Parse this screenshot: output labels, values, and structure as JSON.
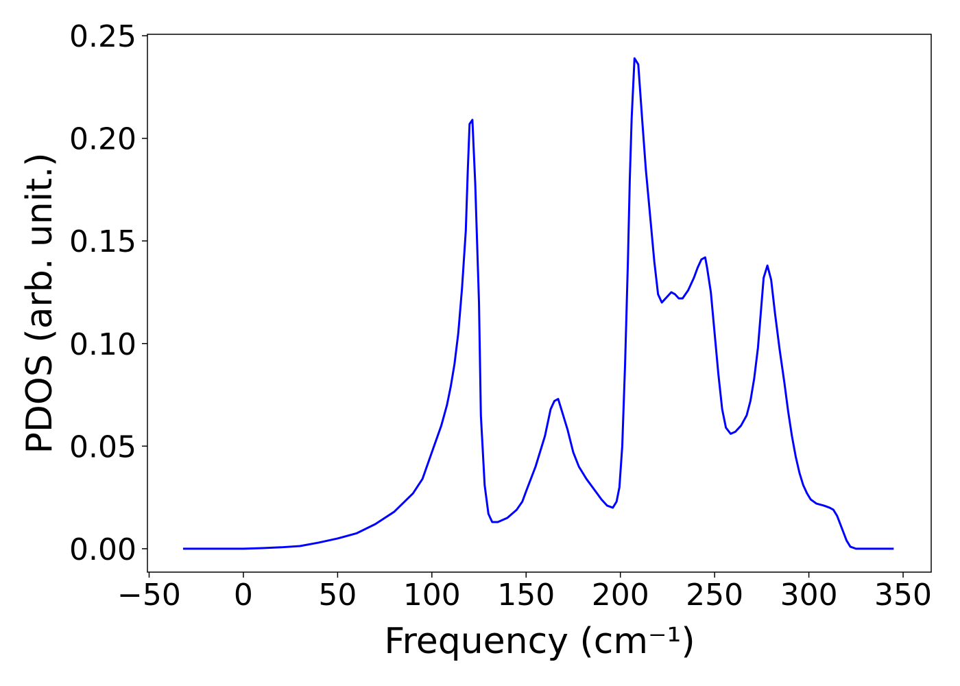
{
  "chart_data": {
    "type": "line",
    "x_label": "Frequency (cm⁻¹)",
    "y_label": "PDOS (arb. unit.)",
    "x": [
      -32,
      0,
      10,
      20,
      30,
      40,
      50,
      60,
      70,
      80,
      90,
      95,
      100,
      105,
      108,
      110,
      112,
      114,
      116,
      118,
      119,
      120,
      121.5,
      123,
      125,
      126,
      128,
      130,
      132,
      135,
      140,
      145,
      148,
      150,
      155,
      160,
      163,
      165,
      167,
      169,
      172,
      175,
      178,
      182,
      186,
      190,
      193,
      196,
      198,
      199.5,
      201,
      202.5,
      204,
      205,
      206,
      207.5,
      209.5,
      211.5,
      213.5,
      216,
      218,
      220,
      222,
      225,
      227,
      229,
      231,
      233,
      236,
      239,
      241,
      243,
      245,
      246,
      248,
      250,
      252,
      254,
      256,
      258.5,
      261,
      264,
      267,
      269,
      271,
      273,
      274.5,
      276,
      278,
      280,
      282,
      284.5,
      287,
      289,
      291,
      293,
      295,
      297,
      299,
      301,
      304,
      308,
      311,
      313,
      315,
      317.5,
      320,
      322,
      325,
      335,
      345
    ],
    "values": [
      0,
      0,
      0.0003,
      0.0007,
      0.0013,
      0.003,
      0.005,
      0.0075,
      0.012,
      0.018,
      0.027,
      0.034,
      0.047,
      0.06,
      0.07,
      0.079,
      0.09,
      0.105,
      0.127,
      0.155,
      0.183,
      0.207,
      0.209,
      0.178,
      0.12,
      0.065,
      0.031,
      0.017,
      0.013,
      0.013,
      0.015,
      0.019,
      0.023,
      0.028,
      0.04,
      0.055,
      0.068,
      0.072,
      0.073,
      0.067,
      0.058,
      0.047,
      0.04,
      0.034,
      0.029,
      0.024,
      0.021,
      0.02,
      0.023,
      0.03,
      0.05,
      0.09,
      0.14,
      0.18,
      0.21,
      0.239,
      0.236,
      0.21,
      0.185,
      0.16,
      0.14,
      0.124,
      0.12,
      0.123,
      0.125,
      0.124,
      0.122,
      0.122,
      0.126,
      0.132,
      0.137,
      0.141,
      0.142,
      0.137,
      0.125,
      0.105,
      0.085,
      0.068,
      0.059,
      0.056,
      0.057,
      0.06,
      0.065,
      0.072,
      0.083,
      0.098,
      0.115,
      0.132,
      0.138,
      0.131,
      0.115,
      0.097,
      0.081,
      0.067,
      0.055,
      0.045,
      0.037,
      0.031,
      0.027,
      0.024,
      0.022,
      0.021,
      0.02,
      0.019,
      0.016,
      0.01,
      0.004,
      0.001,
      0,
      0,
      0
    ],
    "color": "#0000ff",
    "xlim": [
      -50.9,
      364.9
    ],
    "ylim": [
      -0.0114,
      0.2507
    ],
    "xticks": [
      {
        "value": -50,
        "label": "−50"
      },
      0,
      50,
      100,
      150,
      200,
      250,
      300,
      350
    ],
    "yticks": [
      {
        "value": 0,
        "label": "0.00"
      },
      {
        "value": 0.05,
        "label": "0.05"
      },
      {
        "value": 0.1,
        "label": "0.10"
      },
      {
        "value": 0.15,
        "label": "0.15"
      },
      {
        "value": 0.2,
        "label": "0.20"
      },
      {
        "value": 0.25,
        "label": "0.25"
      }
    ],
    "grid": false
  }
}
